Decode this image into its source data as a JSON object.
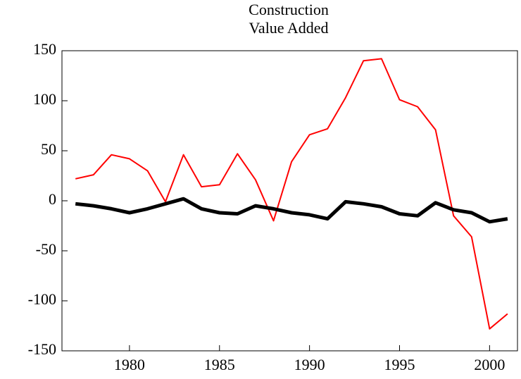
{
  "chart_data": {
    "type": "line",
    "title": [
      "Construction",
      "Value Added"
    ],
    "x": [
      1977,
      1978,
      1979,
      1980,
      1981,
      1982,
      1983,
      1984,
      1985,
      1986,
      1987,
      1988,
      1989,
      1990,
      1991,
      1992,
      1993,
      1994,
      1995,
      1996,
      1997,
      1998,
      1999,
      2000,
      2001
    ],
    "series": [
      {
        "color": "#ff0000",
        "width": 2,
        "values": [
          22,
          26,
          46,
          42,
          30,
          -1,
          46,
          14,
          16,
          47,
          21,
          -20,
          39,
          66,
          72,
          103,
          140,
          142,
          101,
          94,
          71,
          -15,
          -36,
          -128,
          -113
        ]
      },
      {
        "color": "#000000",
        "width": 5,
        "values": [
          -3,
          -5,
          -8,
          -12,
          -8,
          -3,
          2,
          -8,
          -12,
          -13,
          -5,
          -8,
          -12,
          -14,
          -18,
          -1,
          -3,
          -6,
          -13,
          -15,
          -2,
          -9,
          -12,
          -21,
          -18
        ]
      }
    ],
    "xlim": [
      1976.25,
      2001.55
    ],
    "xticks": [
      1980,
      1985,
      1990,
      1995,
      2000
    ],
    "ylim": [
      -150,
      150
    ],
    "yticks": [
      -150,
      -100,
      -50,
      0,
      50,
      100,
      150
    ]
  }
}
